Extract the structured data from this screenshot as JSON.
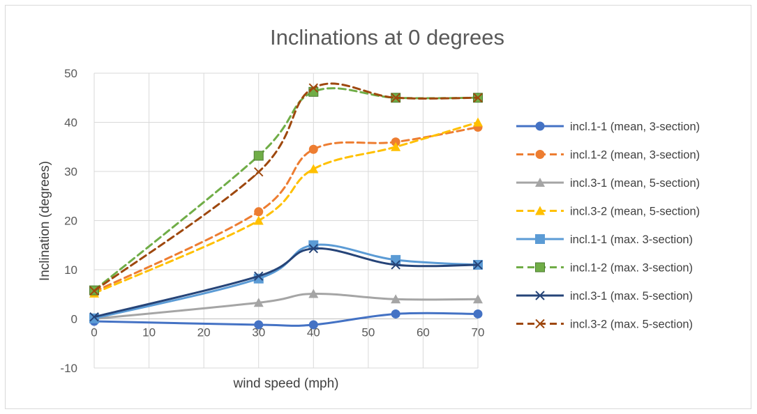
{
  "chart_data": {
    "type": "line",
    "title": "Inclinations at 0 degrees",
    "xlabel": "wind speed (mph)",
    "ylabel": "Inclination (degrees)",
    "xlim": [
      0,
      70
    ],
    "ylim": [
      -10,
      50
    ],
    "xticks": [
      0,
      10,
      20,
      30,
      40,
      50,
      60,
      70
    ],
    "yticks": [
      -10,
      0,
      10,
      20,
      30,
      40,
      50
    ],
    "grid": true,
    "legend_position": "right",
    "x": [
      0,
      30,
      40,
      55,
      70
    ],
    "series": [
      {
        "name": "incl.1-1 (mean, 3-section)",
        "values": [
          -0.5,
          -1.2,
          -1.2,
          1.0,
          1.0
        ],
        "color": "#4472c4",
        "dash": "solid",
        "marker": "circle"
      },
      {
        "name": "incl.1-2 (mean, 3-section)",
        "values": [
          5.5,
          21.8,
          34.5,
          36.0,
          39.0
        ],
        "color": "#ed7d31",
        "dash": "dashed",
        "marker": "circle"
      },
      {
        "name": "incl.3-1 (mean, 5-section)",
        "values": [
          0.0,
          3.3,
          5.1,
          4.0,
          4.0
        ],
        "color": "#a5a5a5",
        "dash": "solid",
        "marker": "triangle"
      },
      {
        "name": "incl.3-2 (mean, 5-section)",
        "values": [
          5.2,
          20.0,
          30.5,
          35.0,
          40.0
        ],
        "color": "#ffc000",
        "dash": "dashed",
        "marker": "triangle"
      },
      {
        "name": "incl.1-1 (max. 3-section)",
        "values": [
          0.1,
          8.2,
          15.0,
          12.0,
          11.0
        ],
        "color": "#5b9bd5",
        "dash": "solid",
        "marker": "square"
      },
      {
        "name": "incl.1-2 (max. 3-section)",
        "values": [
          5.8,
          33.2,
          46.2,
          45.0,
          45.0
        ],
        "color": "#70ad47",
        "dash": "dashed",
        "marker": "square"
      },
      {
        "name": "incl.3-1 (max. 5-section)",
        "values": [
          0.4,
          8.7,
          14.3,
          11.0,
          11.0
        ],
        "color": "#264478",
        "dash": "solid",
        "marker": "x"
      },
      {
        "name": "incl.3-2 (max. 5-section)",
        "values": [
          5.7,
          29.9,
          47.0,
          45.0,
          45.0
        ],
        "color": "#9e480e",
        "dash": "dashed",
        "marker": "x"
      }
    ]
  }
}
